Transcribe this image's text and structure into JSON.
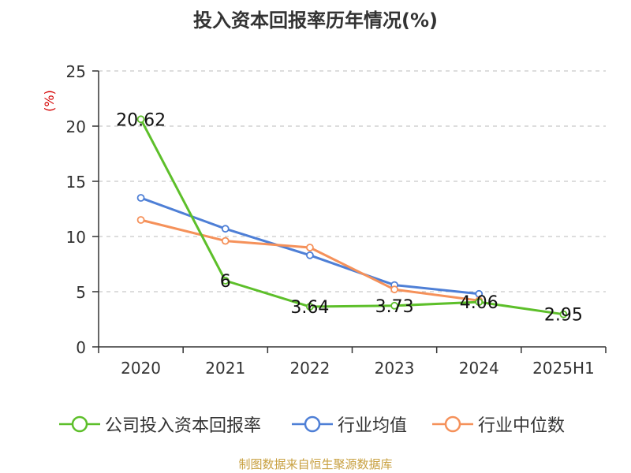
{
  "title": "投入资本回报率历年情况(%)",
  "source": "制图数据来自恒生聚源数据库",
  "colors": {
    "company": "#5dbf2a",
    "industry_avg": "#4e7fd6",
    "industry_median": "#f5915a",
    "unit": "#d40000",
    "source": "#c8a040"
  },
  "chart_data": {
    "type": "line",
    "title": "投入资本回报率历年情况(%)",
    "ylabel": "(%)",
    "xlabel": "",
    "categories": [
      "2020",
      "2021",
      "2022",
      "2023",
      "2024",
      "2025H1"
    ],
    "ylim": [
      0,
      25
    ],
    "yticks": [
      0,
      5,
      10,
      15,
      20,
      25
    ],
    "grid": "horizontal-dashed",
    "legend": "bottom",
    "series": [
      {
        "name": "公司投入资本回报率",
        "color": "#5dbf2a",
        "values": [
          20.62,
          6,
          3.64,
          3.73,
          4.06,
          2.95
        ],
        "labels": [
          "20.62",
          "6",
          "3.64",
          "3.73",
          "4.06",
          "2.95"
        ]
      },
      {
        "name": "行业均值",
        "color": "#4e7fd6",
        "values": [
          13.5,
          10.7,
          8.3,
          5.6,
          4.8,
          null
        ]
      },
      {
        "name": "行业中位数",
        "color": "#f5915a",
        "values": [
          11.5,
          9.6,
          9.0,
          5.2,
          4.2,
          null
        ]
      }
    ]
  }
}
